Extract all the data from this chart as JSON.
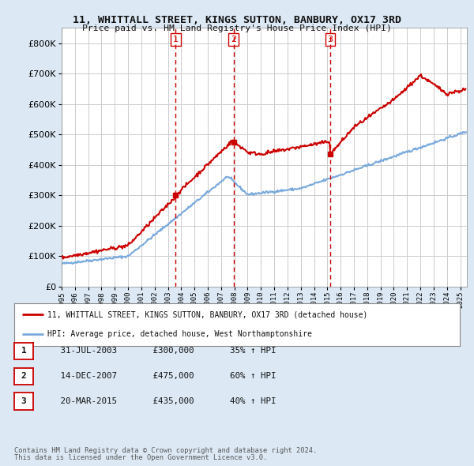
{
  "title": "11, WHITTALL STREET, KINGS SUTTON, BANBURY, OX17 3RD",
  "subtitle": "Price paid vs. HM Land Registry's House Price Index (HPI)",
  "legend_line1": "11, WHITTALL STREET, KINGS SUTTON, BANBURY, OX17 3RD (detached house)",
  "legend_line2": "HPI: Average price, detached house, West Northamptonshire",
  "footnote1": "Contains HM Land Registry data © Crown copyright and database right 2024.",
  "footnote2": "This data is licensed under the Open Government Licence v3.0.",
  "table_rows": [
    {
      "num": "1",
      "date": "31-JUL-2003",
      "price": "£300,000",
      "hpi": "35% ↑ HPI"
    },
    {
      "num": "2",
      "date": "14-DEC-2007",
      "price": "£475,000",
      "hpi": "60% ↑ HPI"
    },
    {
      "num": "3",
      "date": "20-MAR-2015",
      "price": "£435,000",
      "hpi": "40% ↑ HPI"
    }
  ],
  "vline_years": [
    2003.58,
    2007.95,
    2015.22
  ],
  "sale_points": [
    {
      "year": 2003.58,
      "value": 300000
    },
    {
      "year": 2007.95,
      "value": 475000
    },
    {
      "year": 2015.22,
      "value": 435000
    }
  ],
  "hpi_color": "#7aaadd",
  "price_color": "#cc0000",
  "vline_color": "#cc0000",
  "bg_color": "#dce9f5",
  "plot_bg": "#ffffff",
  "ylim": [
    0,
    850000
  ],
  "xlim_start": 1995.0,
  "xlim_end": 2025.5
}
